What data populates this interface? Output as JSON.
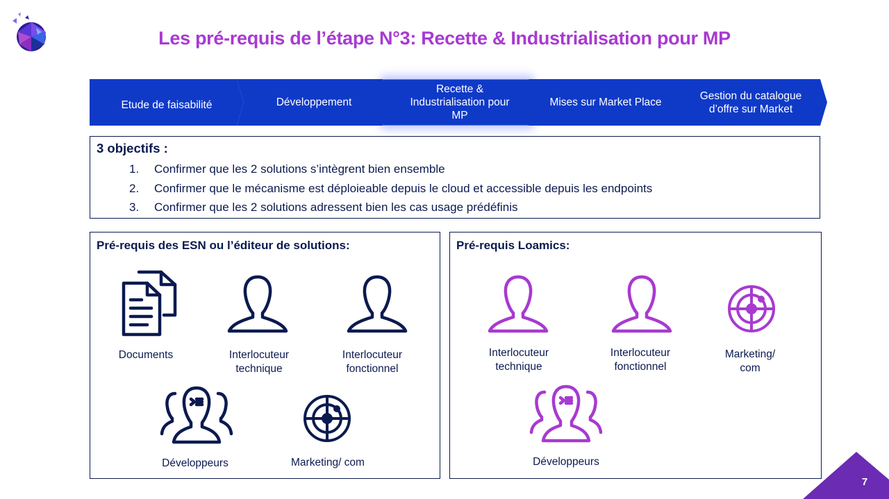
{
  "title": "Les pré-requis de l’étape N°3: Recette & Industrialisation pour MP",
  "colors": {
    "accent_purple": "#a83ad0",
    "step_blue": "#0f3ac8",
    "navy": "#0b1a4f",
    "corner_purple": "#6b2bb3"
  },
  "steps": [
    {
      "lines": [
        "Etude de faisabilité"
      ]
    },
    {
      "lines": [
        "Développement"
      ]
    },
    {
      "lines": [
        "Recette &",
        "Industrialisation pour",
        "MP"
      ],
      "active": true
    },
    {
      "lines": [
        "Mises sur Market Place"
      ]
    },
    {
      "lines": [
        "Gestion du catalogue",
        "d’offre sur Market"
      ]
    }
  ],
  "objectives": {
    "title": "3 objectifs :",
    "items": [
      {
        "num": "1.",
        "text": "Confirmer que les 2 solutions s’intègrent bien ensemble"
      },
      {
        "num": "2.",
        "text": "Confirmer que le mécanisme est déploieable depuis le cloud et accessible depuis les endpoints"
      },
      {
        "num": "3.",
        "text": "Confirmer que les 2 solutions adressent bien les cas usage prédéfinis"
      }
    ]
  },
  "panel_esn": {
    "title": "Pré-requis des ESN ou l’éditeur de solutions:",
    "items": [
      {
        "icon": "documents-icon",
        "label": [
          "Documents"
        ]
      },
      {
        "icon": "person-icon",
        "label": [
          "Interlocuteur",
          "technique"
        ]
      },
      {
        "icon": "person-icon",
        "label": [
          "Interlocuteur",
          "fonctionnel"
        ]
      },
      {
        "icon": "developers-icon",
        "label": [
          "Développeurs"
        ]
      },
      {
        "icon": "target-icon",
        "label": [
          "Marketing/ com"
        ]
      }
    ]
  },
  "panel_loamics": {
    "title": "Pré-requis Loamics:",
    "items": [
      {
        "icon": "person-icon",
        "label": [
          "Interlocuteur",
          "technique"
        ]
      },
      {
        "icon": "person-icon",
        "label": [
          "Interlocuteur",
          "fonctionnel"
        ]
      },
      {
        "icon": "target-icon",
        "label": [
          "Marketing/",
          "com"
        ]
      },
      {
        "icon": "developers-icon",
        "label": [
          "Développeurs"
        ]
      }
    ]
  },
  "page_number": "7"
}
